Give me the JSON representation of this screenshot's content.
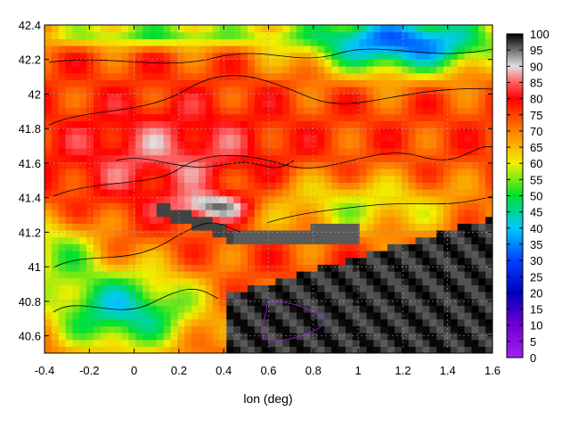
{
  "chart_data": {
    "type": "heatmap",
    "title": "",
    "xlabel": "lon (deg)",
    "ylabel": "",
    "xlim": [
      -0.4,
      1.6
    ],
    "ylim": [
      40.5,
      42.4
    ],
    "x_ticks": [
      "-0.4",
      "-0.2",
      "0",
      "0.2",
      "0.4",
      "0.6",
      "0.8",
      "1",
      "1.2",
      "1.4",
      "1.6"
    ],
    "y_ticks": [
      "40.6",
      "40.8",
      "41",
      "41.2",
      "41.4",
      "41.6",
      "41.8",
      "42",
      "42.2",
      "42.4"
    ],
    "colorbar": {
      "range": [
        0,
        100
      ],
      "ticks": [
        "0",
        "5",
        "10",
        "15",
        "20",
        "25",
        "30",
        "35",
        "40",
        "45",
        "50",
        "55",
        "60",
        "65",
        "70",
        "75",
        "80",
        "85",
        "90",
        "95",
        "100"
      ],
      "palette": [
        {
          "v": 0,
          "c": "#a020f0"
        },
        {
          "v": 10,
          "c": "#7000d0"
        },
        {
          "v": 20,
          "c": "#0000c0"
        },
        {
          "v": 30,
          "c": "#0040ff"
        },
        {
          "v": 40,
          "c": "#00c8ff"
        },
        {
          "v": 50,
          "c": "#00e030"
        },
        {
          "v": 60,
          "c": "#f0f000"
        },
        {
          "v": 70,
          "c": "#ff8000"
        },
        {
          "v": 80,
          "c": "#ff0000"
        },
        {
          "v": 85,
          "c": "#ff6060"
        },
        {
          "v": 90,
          "c": "#e0e0e0"
        },
        {
          "v": 95,
          "c": "#707070"
        },
        {
          "v": 100,
          "c": "#000000"
        }
      ]
    },
    "grid": true,
    "contours": true
  }
}
